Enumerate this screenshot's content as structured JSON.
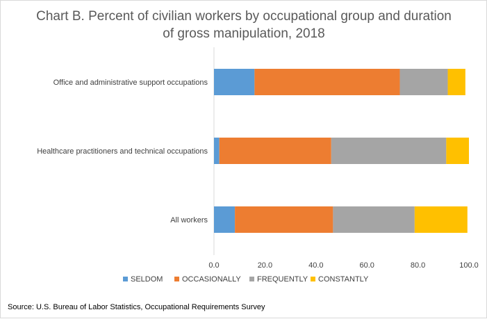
{
  "chart_data": {
    "type": "bar",
    "orientation": "horizontal",
    "stacked": true,
    "title_lines": [
      "Chart B. Percent of civilian workers by occupational group and duration",
      "of gross manipulation, 2018"
    ],
    "categories": [
      "Office and administrative support occupations",
      "Healthcare practitioners and technical occupations",
      "All workers"
    ],
    "series": [
      {
        "name": "SELDOM",
        "color": "#5b9bd5",
        "values": [
          15.9,
          2.1,
          8.2
        ]
      },
      {
        "name": "OCCASIONALLY",
        "color": "#ed7d31",
        "values": [
          57.0,
          43.9,
          38.5
        ]
      },
      {
        "name": "FREQUENTLY",
        "color": "#a5a5a5",
        "values": [
          18.8,
          45.1,
          32.0
        ]
      },
      {
        "name": "CONSTANTLY",
        "color": "#ffc000",
        "values": [
          6.9,
          8.9,
          20.7
        ]
      }
    ],
    "xlim": [
      0,
      100
    ],
    "xticks": [
      "0.0",
      "20.0",
      "40.0",
      "60.0",
      "80.0",
      "100.0"
    ],
    "legend_position": "bottom",
    "grid": false
  },
  "source": "Source: U.S. Bureau of Labor Statistics, Occupational Requirements Survey"
}
